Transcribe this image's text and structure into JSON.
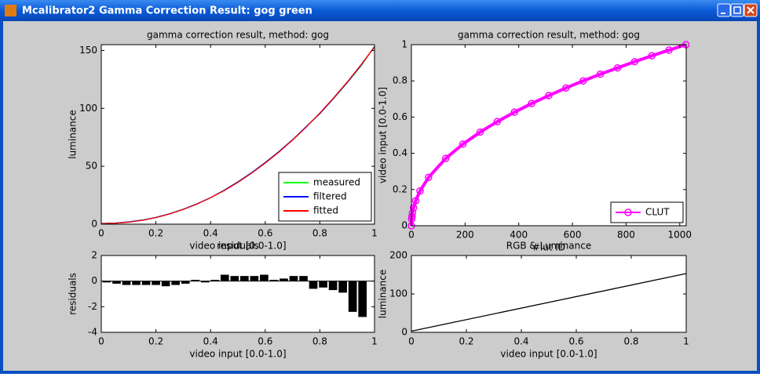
{
  "window": {
    "title": "Mcalibrator2 Gamma Correction Result: gog green"
  },
  "chart_data": [
    {
      "type": "line",
      "title": "gamma correction result, method: gog",
      "xlabel": "video input [0.0-1.0]",
      "ylabel": "luminance",
      "x": [
        0,
        0.05,
        0.1,
        0.15,
        0.2,
        0.25,
        0.3,
        0.35,
        0.4,
        0.45,
        0.5,
        0.55,
        0.6,
        0.65,
        0.7,
        0.75,
        0.8,
        0.85,
        0.9,
        0.95,
        1
      ],
      "series": [
        {
          "name": "measured",
          "color": "#00ff00",
          "values": [
            0.6,
            0.9,
            1.9,
            3.5,
            5.8,
            9.0,
            12.9,
            17.5,
            22.9,
            29.3,
            36.5,
            44.4,
            53.2,
            62.6,
            72.9,
            84.2,
            95.5,
            108.5,
            122.0,
            136.5,
            153.5
          ]
        },
        {
          "name": "filtered",
          "color": "#0000ff",
          "values": [
            0.6,
            0.9,
            1.9,
            3.5,
            5.8,
            9.0,
            12.9,
            17.5,
            22.9,
            29.3,
            36.5,
            44.4,
            53.2,
            62.6,
            72.9,
            84.2,
            95.5,
            108.6,
            122.3,
            137.0,
            153.3
          ]
        },
        {
          "name": "fitted",
          "color": "#ff0000",
          "values": [
            0.5,
            0.8,
            1.7,
            3.3,
            5.7,
            8.8,
            12.7,
            17.3,
            22.8,
            29.0,
            36.1,
            44.0,
            52.7,
            62.2,
            72.6,
            83.8,
            96.0,
            109.0,
            122.7,
            137.5,
            153.0
          ]
        }
      ],
      "xlim": [
        0,
        1
      ],
      "ylim": [
        0,
        155
      ],
      "xticks": [
        0,
        0.2,
        0.4,
        0.6,
        0.8,
        1
      ],
      "yticks": [
        0,
        50,
        100,
        150
      ],
      "legend": "lower right"
    },
    {
      "type": "line",
      "title": "gamma correction result, method: gog",
      "xlabel": "#lut ID",
      "ylabel": "video input [0.0-1.0]",
      "x": [
        0,
        1,
        2,
        4,
        8,
        16,
        32,
        64,
        128,
        192,
        256,
        320,
        384,
        448,
        512,
        576,
        640,
        704,
        768,
        832,
        896,
        960,
        1023
      ],
      "series": [
        {
          "name": "CLUT",
          "color": "#ff00ff",
          "marker": "o",
          "values": [
            0,
            0.037,
            0.051,
            0.071,
            0.099,
            0.138,
            0.192,
            0.267,
            0.372,
            0.451,
            0.517,
            0.575,
            0.627,
            0.675,
            0.719,
            0.761,
            0.8,
            0.837,
            0.872,
            0.906,
            0.939,
            0.97,
            1
          ]
        }
      ],
      "xlim": [
        0,
        1024
      ],
      "ylim": [
        0,
        1
      ],
      "xticks": [
        0,
        200,
        400,
        600,
        800,
        1000
      ],
      "yticks": [
        0,
        0.2,
        0.4,
        0.6,
        0.8,
        1
      ],
      "legend": "lower right"
    },
    {
      "type": "bar",
      "title": "residuals",
      "xlabel": "video input [0.0-1.0]",
      "ylabel": "residuals",
      "color": "#000000",
      "x": [
        0.02,
        0.056,
        0.092,
        0.128,
        0.164,
        0.2,
        0.236,
        0.272,
        0.308,
        0.344,
        0.38,
        0.416,
        0.452,
        0.488,
        0.524,
        0.56,
        0.596,
        0.632,
        0.668,
        0.704,
        0.74,
        0.776,
        0.812,
        0.848,
        0.884,
        0.92,
        0.956
      ],
      "values": [
        -0.1,
        -0.2,
        -0.3,
        -0.3,
        -0.3,
        -0.3,
        -0.4,
        -0.3,
        -0.2,
        0.1,
        -0.1,
        0.1,
        0.5,
        0.4,
        0.4,
        0.4,
        0.5,
        0.1,
        0.2,
        0.4,
        0.4,
        -0.6,
        -0.5,
        -0.7,
        -0.9,
        -2.4,
        -2.8
      ],
      "xlim": [
        0,
        1
      ],
      "ylim": [
        -4,
        2
      ],
      "xticks": [
        0,
        0.2,
        0.4,
        0.6,
        0.8,
        1
      ],
      "yticks": [
        -4,
        -2,
        0,
        2
      ]
    },
    {
      "type": "line",
      "title": "RGB & Luminance",
      "xlabel": "video input [0.0-1.0]",
      "ylabel": "luminance",
      "x": [
        0,
        1
      ],
      "series": [
        {
          "color": "#000000",
          "values": [
            3,
            153
          ]
        }
      ],
      "xlim": [
        0,
        1
      ],
      "ylim": [
        0,
        200
      ],
      "xticks": [
        0,
        0.2,
        0.4,
        0.6,
        0.8,
        1
      ],
      "yticks": [
        0,
        100,
        200
      ]
    }
  ]
}
